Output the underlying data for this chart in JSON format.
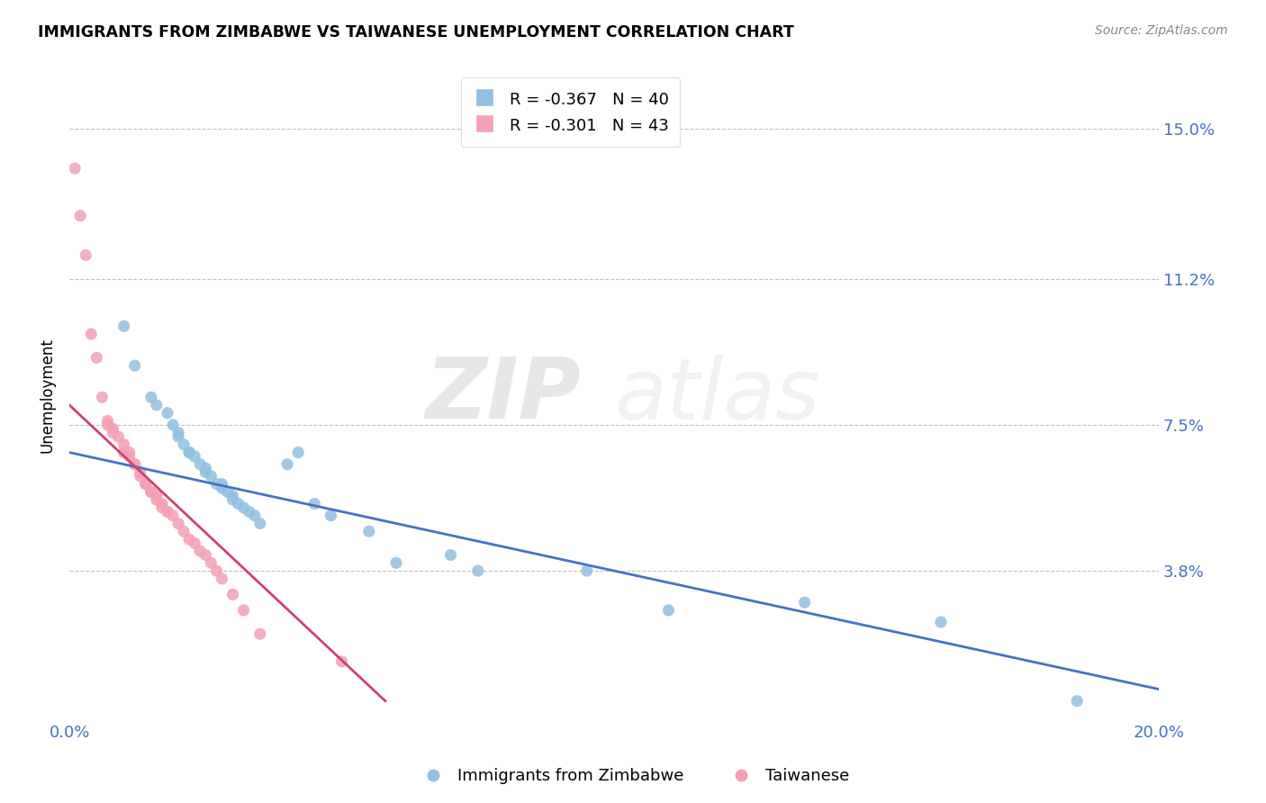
{
  "title": "IMMIGRANTS FROM ZIMBABWE VS TAIWANESE UNEMPLOYMENT CORRELATION CHART",
  "source": "Source: ZipAtlas.com",
  "ylabel_label": "Unemployment",
  "legend_labels": [
    "Immigrants from Zimbabwe",
    "Taiwanese"
  ],
  "color_blue": "#92c0e0",
  "color_pink": "#f4a0b5",
  "color_trendline_blue": "#4472c4",
  "color_trendline_pink": "#d04070",
  "watermark_zip": "ZIP",
  "watermark_atlas": "atlas",
  "xlim": [
    0.0,
    0.2
  ],
  "ylim": [
    0.0,
    0.165
  ],
  "ytick_vals": [
    0.038,
    0.075,
    0.112,
    0.15
  ],
  "ytick_labels": [
    "3.8%",
    "7.5%",
    "11.2%",
    "15.0%"
  ],
  "xtick_vals": [
    0.0,
    0.2
  ],
  "xtick_labels": [
    "0.0%",
    "20.0%"
  ],
  "blue_scatter_x": [
    0.01,
    0.012,
    0.015,
    0.016,
    0.018,
    0.019,
    0.02,
    0.02,
    0.021,
    0.022,
    0.022,
    0.023,
    0.024,
    0.025,
    0.025,
    0.026,
    0.027,
    0.028,
    0.028,
    0.029,
    0.03,
    0.03,
    0.031,
    0.032,
    0.033,
    0.034,
    0.035,
    0.04,
    0.042,
    0.045,
    0.048,
    0.055,
    0.06,
    0.07,
    0.075,
    0.095,
    0.11,
    0.135,
    0.16,
    0.185
  ],
  "blue_scatter_y": [
    0.1,
    0.09,
    0.082,
    0.08,
    0.078,
    0.075,
    0.073,
    0.072,
    0.07,
    0.068,
    0.068,
    0.067,
    0.065,
    0.064,
    0.063,
    0.062,
    0.06,
    0.06,
    0.059,
    0.058,
    0.057,
    0.056,
    0.055,
    0.054,
    0.053,
    0.052,
    0.05,
    0.065,
    0.068,
    0.055,
    0.052,
    0.048,
    0.04,
    0.042,
    0.038,
    0.038,
    0.028,
    0.03,
    0.025,
    0.005
  ],
  "pink_scatter_x": [
    0.001,
    0.002,
    0.003,
    0.004,
    0.005,
    0.006,
    0.007,
    0.007,
    0.008,
    0.008,
    0.009,
    0.01,
    0.01,
    0.011,
    0.011,
    0.012,
    0.012,
    0.013,
    0.013,
    0.014,
    0.014,
    0.015,
    0.015,
    0.016,
    0.016,
    0.017,
    0.017,
    0.018,
    0.018,
    0.019,
    0.02,
    0.021,
    0.022,
    0.023,
    0.024,
    0.025,
    0.026,
    0.027,
    0.028,
    0.03,
    0.032,
    0.035,
    0.05
  ],
  "pink_scatter_y": [
    0.14,
    0.128,
    0.118,
    0.098,
    0.092,
    0.082,
    0.076,
    0.075,
    0.074,
    0.073,
    0.072,
    0.07,
    0.068,
    0.068,
    0.067,
    0.065,
    0.065,
    0.063,
    0.062,
    0.06,
    0.06,
    0.058,
    0.058,
    0.057,
    0.056,
    0.055,
    0.054,
    0.053,
    0.053,
    0.052,
    0.05,
    0.048,
    0.046,
    0.045,
    0.043,
    0.042,
    0.04,
    0.038,
    0.036,
    0.032,
    0.028,
    0.022,
    0.015
  ],
  "blue_trendline_x": [
    0.0,
    0.2
  ],
  "blue_trendline_y": [
    0.068,
    0.008
  ],
  "pink_trendline_x": [
    0.0,
    0.058
  ],
  "pink_trendline_y": [
    0.08,
    0.005
  ]
}
